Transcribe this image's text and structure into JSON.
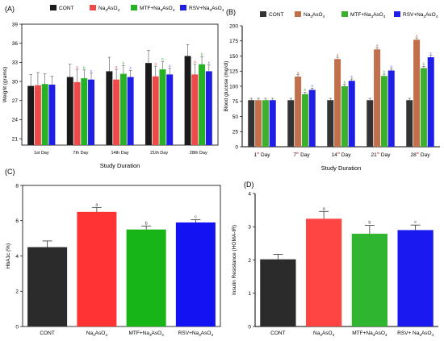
{
  "chart_data": [
    {
      "type": "bar",
      "panel_label": "(A)",
      "xlabel": "Study Duration",
      "ylabel": "Weight (grams)",
      "ylim": [
        20,
        39
      ],
      "yticks": [
        21,
        24,
        27,
        30,
        33,
        36,
        39
      ],
      "legend_position": "top",
      "categories": [
        "1st Day",
        "7th Day",
        "14th Day",
        "21th Day",
        "28th Day"
      ],
      "series": [
        {
          "name": "CONT",
          "color": "#1a1a1a",
          "values": [
            29.3,
            30.7,
            31.6,
            32.9,
            34.0
          ],
          "errors": [
            1.8,
            2.0,
            2.2,
            2.0,
            1.8
          ],
          "marks": [
            "",
            "",
            "",
            "",
            ""
          ]
        },
        {
          "name": "Na3AsO4",
          "color": "#ef4a4a",
          "values": [
            29.4,
            29.9,
            30.3,
            30.8,
            31.1
          ],
          "errors": [
            2.0,
            2.0,
            1.6,
            1.6,
            1.6
          ],
          "marks": [
            "",
            "a",
            "a",
            "a",
            "a"
          ]
        },
        {
          "name": "MTF+Na3AsO4",
          "color": "#27b127",
          "values": [
            29.6,
            30.5,
            31.2,
            31.9,
            32.7
          ],
          "errors": [
            1.6,
            1.3,
            1.3,
            1.2,
            1.2
          ],
          "marks": [
            "",
            "b",
            "b",
            "b",
            "b"
          ]
        },
        {
          "name": "RSV+Na3AsO4",
          "color": "#1e1ee6",
          "values": [
            29.5,
            30.3,
            30.7,
            31.1,
            31.6
          ],
          "errors": [
            1.3,
            1.0,
            1.0,
            1.0,
            1.0
          ],
          "marks": [
            "",
            "c",
            "c",
            "c",
            "c"
          ]
        }
      ]
    },
    {
      "type": "bar",
      "panel_label": "(B)",
      "xlabel": "Study Duration",
      "ylabel": "Blood glucose (mg/dl)",
      "ylim": [
        0,
        200
      ],
      "yticks": [
        0,
        25,
        50,
        75,
        100,
        125,
        150,
        175,
        200
      ],
      "legend_position": "top",
      "categories": [
        "1",
        "7",
        "14",
        "21",
        "28"
      ],
      "category_suffix": "Day",
      "series": [
        {
          "name": "CONT",
          "color": "#333333",
          "values": [
            77,
            77,
            77,
            77,
            77
          ],
          "errors": [
            3,
            3,
            3,
            3,
            3
          ],
          "marks": [
            "",
            "",
            "",
            "",
            ""
          ]
        },
        {
          "name": "Na3AsO4",
          "color": "#c2704b",
          "values": [
            77,
            116,
            145,
            161,
            177
          ],
          "errors": [
            3,
            3,
            3,
            3,
            3
          ],
          "marks": [
            "",
            "a",
            "a",
            "a",
            "a"
          ]
        },
        {
          "name": "MTF+Na3AsO4",
          "color": "#3bb02d",
          "values": [
            77,
            87,
            100,
            117,
            130
          ],
          "errors": [
            3,
            3,
            3,
            3,
            3
          ],
          "marks": [
            "",
            "b",
            "b",
            "b",
            "b"
          ]
        },
        {
          "name": "RSV+Na3AsO4",
          "color": "#1e1ee6",
          "values": [
            77,
            94,
            109,
            126,
            148
          ],
          "errors": [
            3,
            3,
            3,
            3,
            3
          ],
          "marks": [
            "",
            "c",
            "c",
            "c",
            "c"
          ]
        }
      ]
    },
    {
      "type": "bar",
      "panel_label": "(C)",
      "xlabel": "",
      "ylabel": "HbA1c (%)",
      "ylim": [
        0,
        8
      ],
      "yticks": [
        0,
        2,
        4,
        6,
        8
      ],
      "categories": [
        "CONT",
        "Na3AsO4",
        "MTF+Na3AsO4",
        "RSV+Na3AsO4"
      ],
      "colors": [
        "#2b2b2b",
        "#ff3333",
        "#17b517",
        "#1212f2"
      ],
      "values": [
        4.5,
        6.5,
        5.5,
        5.9
      ],
      "errors": [
        0.35,
        0.25,
        0.2,
        0.15
      ],
      "marks": [
        "",
        "a",
        "b",
        "c"
      ]
    },
    {
      "type": "bar",
      "panel_label": "(D)",
      "xlabel": "",
      "ylabel": "Insulin Resistance (HOMA-IR)",
      "ylim": [
        0,
        4
      ],
      "yticks": [
        0,
        1,
        2,
        3,
        4
      ],
      "categories": [
        "CONT",
        "Na3AsO4",
        "MTF+Na3AsO4",
        "RSV+ Na3AsO4"
      ],
      "colors": [
        "#2b2b2b",
        "#ff4444",
        "#2fb52f",
        "#1a1af0"
      ],
      "values": [
        2.02,
        3.24,
        2.79,
        2.9
      ],
      "errors": [
        0.15,
        0.22,
        0.25,
        0.15
      ],
      "marks": [
        "",
        "a",
        "b",
        "c"
      ]
    }
  ]
}
